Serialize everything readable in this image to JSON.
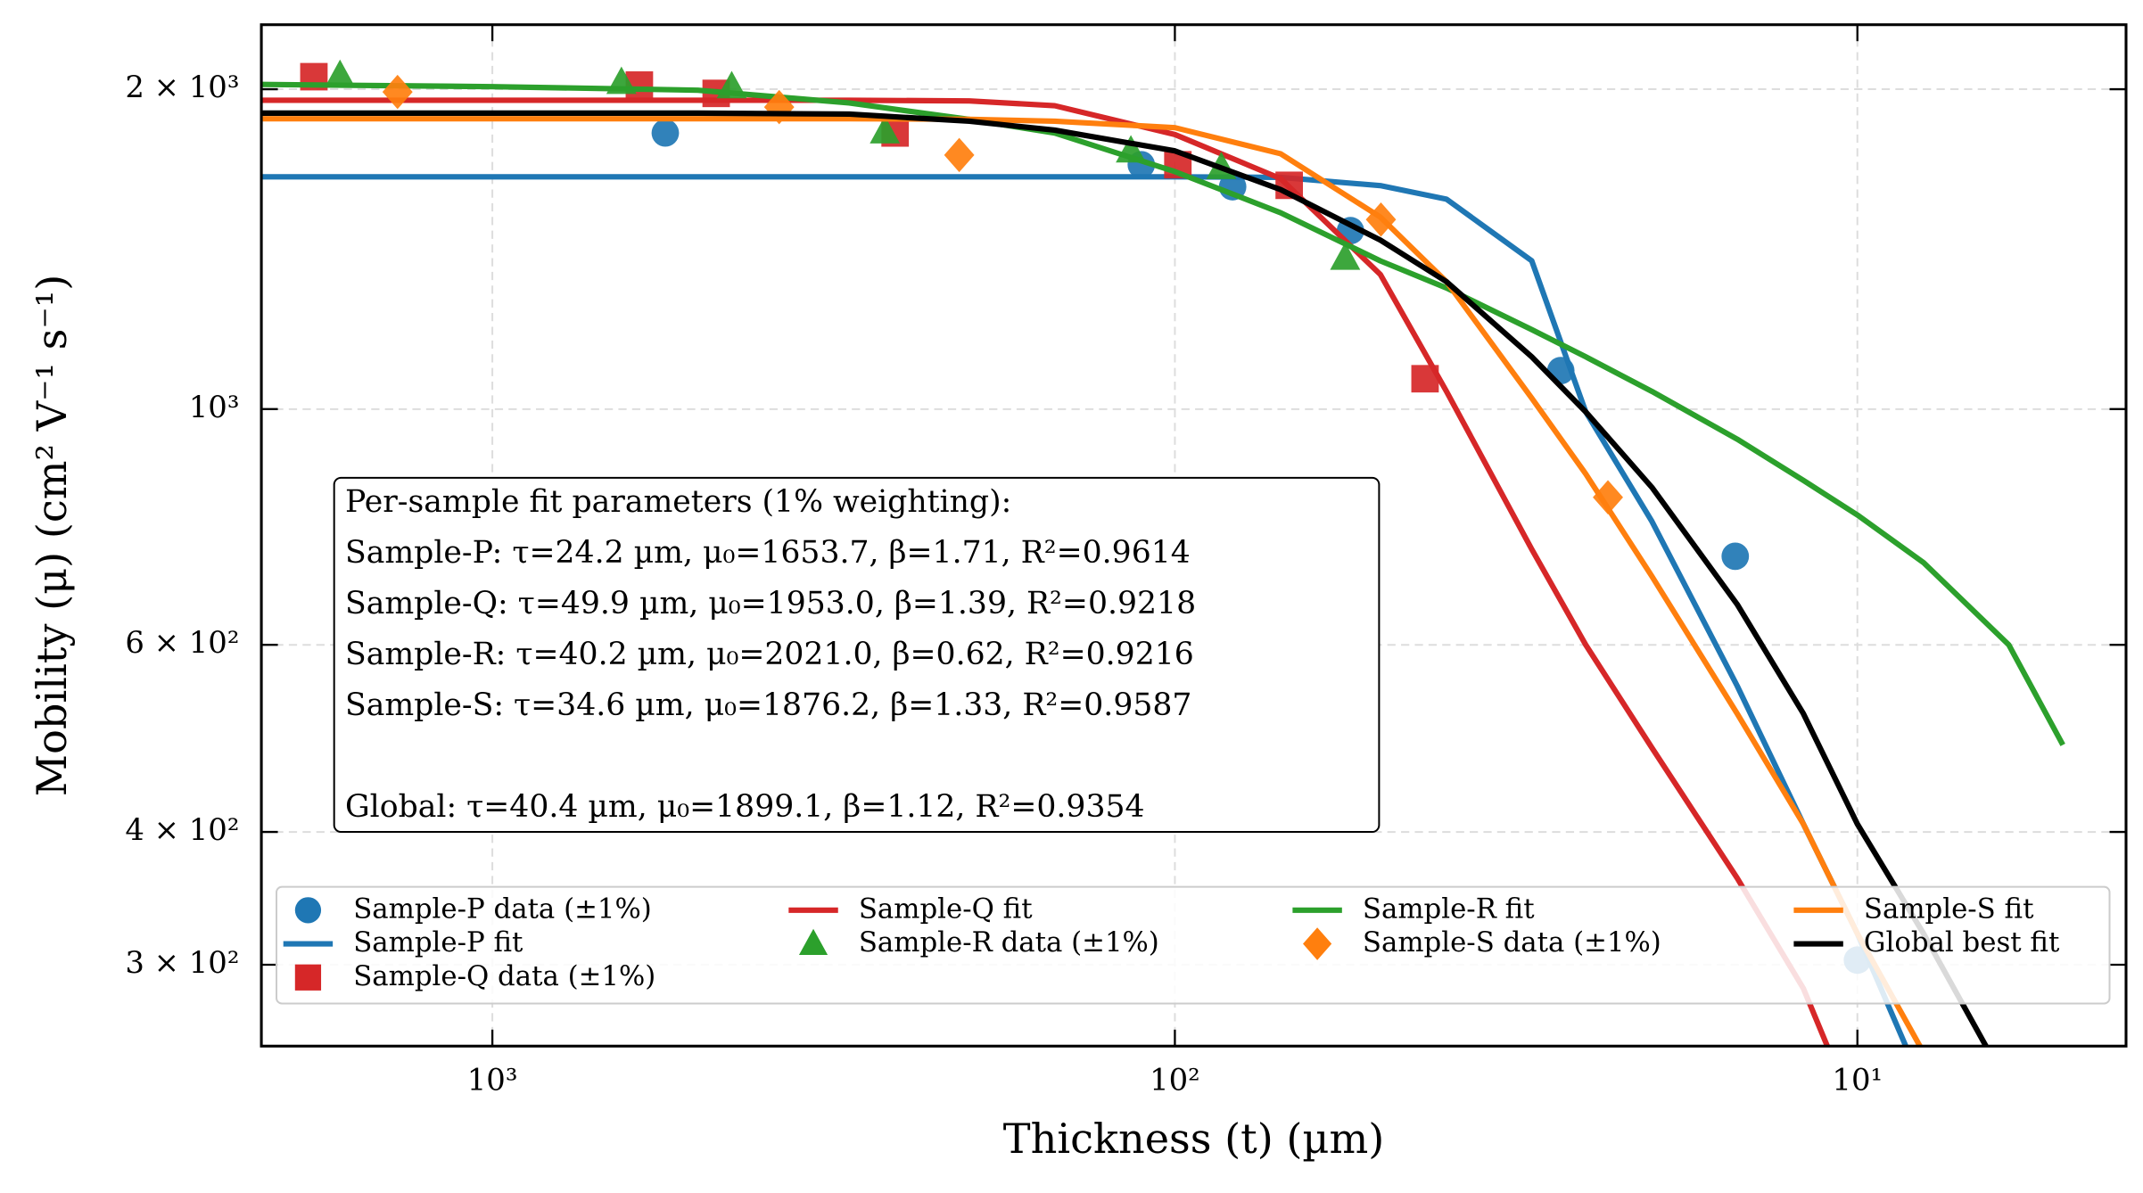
{
  "chart_data": {
    "type": "line",
    "xlabel": "Thickness (t) (µm)",
    "ylabel": "Mobility (μ) (cm² V⁻¹ s⁻¹)",
    "xscale": "log",
    "yscale": "log",
    "xlim": [
      2180,
      4.04
    ],
    "ylim": [
      2300,
      251.5
    ],
    "xticks": [
      {
        "value": 1000,
        "label": "10³"
      },
      {
        "value": 100,
        "label": "10²"
      },
      {
        "value": 10,
        "label": "10¹"
      }
    ],
    "yticks": [
      {
        "value": 2000,
        "label": "2 × 10³"
      },
      {
        "value": 1000,
        "label": "10³"
      },
      {
        "value": 600,
        "label": "6 × 10²"
      },
      {
        "value": 400,
        "label": "4 × 10²"
      },
      {
        "value": 300,
        "label": "3 × 10²"
      }
    ],
    "grid": true,
    "legend": "lower center",
    "legend_columns": 4,
    "annotation": [
      "Per-sample fit parameters (1% weighting):",
      "Sample-P: τ=24.2 µm, μ₀=1653.7, β=1.71, R²=0.9614",
      "Sample-Q: τ=49.9 µm, μ₀=1953.0, β=1.39, R²=0.9218",
      "Sample-R: τ=40.2 µm, μ₀=2021.0, β=0.62, R²=0.9216",
      "Sample-S: τ=34.6 µm, μ₀=1876.2, β=1.33, R²=0.9587",
      "Global: τ=40.4 µm, μ₀=1899.1, β=1.12, R²=0.9354"
    ],
    "series": [
      {
        "name": "Sample-P data (±1%)",
        "color": "#1f77b4",
        "marker": "circle",
        "x": [
          558,
          112,
          82.3,
          55.3,
          27.2,
          15.1,
          10
        ],
        "values": [
          1819,
          1698,
          1619,
          1472,
          1087,
          727,
          303
        ]
      },
      {
        "name": "Sample-P fit",
        "color": "#1f77b4",
        "marker": null,
        "x": [
          2180,
          1000,
          500,
          300,
          200,
          150,
          100,
          70,
          50,
          40,
          30,
          25,
          20,
          15,
          12,
          10,
          8
        ],
        "values": [
          1654,
          1654,
          1654,
          1654,
          1654,
          1654,
          1654,
          1652,
          1623,
          1576,
          1379,
          994,
          784,
          549,
          407,
          321,
          230
        ]
      },
      {
        "name": "Sample-Q data (±1%)",
        "color": "#d62728",
        "marker": "square",
        "x": [
          1826,
          609,
          470,
          257,
          99,
          68,
          43
        ],
        "values": [
          2055,
          2018,
          1982,
          1819,
          1698,
          1624,
          1068
        ]
      },
      {
        "name": "Sample-Q fit",
        "color": "#d62728",
        "marker": null,
        "x": [
          2180,
          1000,
          500,
          300,
          200,
          150,
          100,
          70,
          50,
          40,
          30,
          25,
          20,
          15,
          12,
          10
        ],
        "values": [
          1953,
          1953,
          1953,
          1953,
          1950,
          1930,
          1813,
          1648,
          1339,
          1039,
          738,
          600,
          480,
          362,
          285,
          215
        ]
      },
      {
        "name": "Sample-R data (±1%)",
        "color": "#2ca02c",
        "marker": "triangle",
        "x": [
          1672,
          647,
          446,
          266,
          116,
          85.5,
          56.3
        ],
        "values": [
          2061,
          2030,
          2011,
          1824,
          1750,
          1688,
          1387
        ]
      },
      {
        "name": "Sample-R fit",
        "color": "#2ca02c",
        "marker": null,
        "x": [
          2180,
          1000,
          500,
          300,
          200,
          150,
          100,
          70,
          50,
          40,
          30,
          25,
          20,
          15,
          12,
          10,
          8,
          6,
          5
        ],
        "values": [
          2021,
          2011,
          1996,
          1941,
          1873,
          1819,
          1673,
          1530,
          1379,
          1300,
          1188,
          1120,
          1039,
          937,
          857,
          795,
          717,
          600,
          483
        ]
      },
      {
        "name": "Sample-S data (±1%)",
        "color": "#ff7f0e",
        "marker": "diamond",
        "x": [
          1377,
          380,
          207,
          49.9,
          23.2
        ],
        "values": [
          1988,
          1924,
          1734,
          1508,
          826
        ]
      },
      {
        "name": "Sample-S fit",
        "color": "#ff7f0e",
        "marker": null,
        "x": [
          2180,
          1000,
          500,
          300,
          200,
          150,
          100,
          70,
          50,
          40,
          30,
          25,
          20,
          15,
          12,
          10,
          8
        ],
        "values": [
          1876,
          1876,
          1876,
          1876,
          1874,
          1866,
          1840,
          1739,
          1516,
          1318,
          1024,
          869,
          696,
          517,
          407,
          321,
          248
        ]
      },
      {
        "name": "Global best fit",
        "color": "#000000",
        "marker": null,
        "x": [
          2180,
          1000,
          500,
          300,
          200,
          150,
          100,
          70,
          50,
          40,
          30,
          25,
          20,
          15,
          12,
          10,
          8,
          6
        ],
        "values": [
          1899,
          1899,
          1899,
          1895,
          1866,
          1830,
          1750,
          1609,
          1442,
          1318,
          1120,
          994,
          844,
          655,
          517,
          407,
          321,
          230
        ]
      }
    ]
  }
}
